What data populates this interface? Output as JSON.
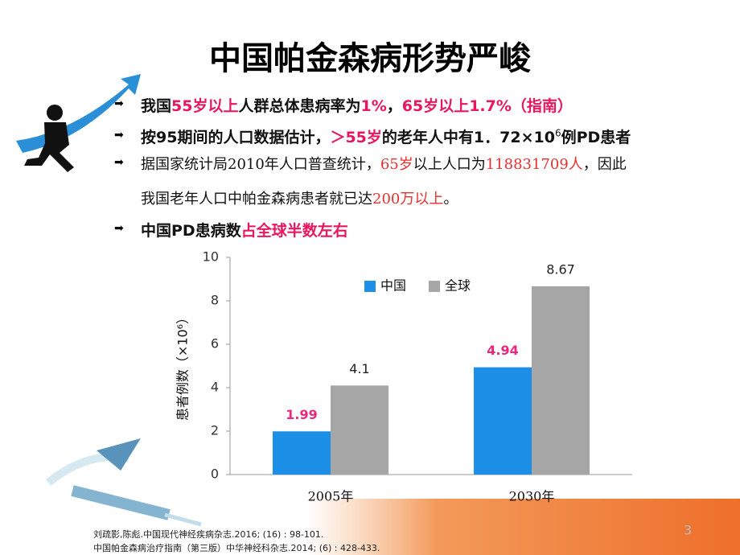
{
  "title": "中国帕金森病形势严峻",
  "bullets": [
    {
      "bold": true,
      "lines": [
        [
          {
            "text": "我国"
          },
          {
            "text": "55岁以上",
            "color": "#e8175d"
          },
          {
            "text": "人群总体患病率为"
          },
          {
            "text": "1%",
            "color": "#e8175d"
          },
          {
            "text": "，"
          },
          {
            "text": "65岁以上1.7%（指南）",
            "color": "#e8175d"
          }
        ]
      ]
    },
    {
      "bold": true,
      "lines": [
        [
          {
            "text": "按95期间的人口数据估计，"
          },
          {
            "text": "＞55岁",
            "color": "#e8175d"
          },
          {
            "text": "的老年人中有1．72×10"
          },
          {
            "text": "6",
            "superscript": true
          },
          {
            "text": "例PD患者"
          }
        ]
      ]
    },
    {
      "bold": false,
      "lines": [
        [
          {
            "text": "据国家统计局2010年人口普查统计，"
          },
          {
            "text": "65岁",
            "color": "#e53030"
          },
          {
            "text": "以上人口为"
          },
          {
            "text": "118831709人",
            "color": "#e53030"
          },
          {
            "text": "，因此"
          }
        ],
        [
          {
            "text": "我国老年人口中帕金森病患者就已达"
          },
          {
            "text": "200万以上",
            "color": "#e53030"
          },
          {
            "text": "。"
          }
        ]
      ]
    },
    {
      "bold": true,
      "lines": [
        [
          {
            "text": "中国PD患病数"
          },
          {
            "text": "占全球半数左右",
            "color": "#e8175d"
          }
        ]
      ]
    }
  ],
  "chart_data": {
    "type": "bar",
    "y_label": "患者例数（×10⁶）",
    "categories": [
      "2005年",
      "2030年"
    ],
    "series": [
      {
        "name": "中国",
        "color": "#1e8fe6",
        "label_color": "#e8277d",
        "values": [
          1.99,
          4.94
        ]
      },
      {
        "name": "全球",
        "color": "#a6a6a6",
        "label_color": "#222222",
        "values": [
          4.1,
          8.67
        ]
      }
    ],
    "ylim": [
      0,
      10
    ],
    "yticks": [
      0,
      2,
      4,
      6,
      8,
      10
    ],
    "grid": false,
    "legend": "top"
  },
  "references": [
    "刘疏影,陈彪.中国现代神经疾病杂志.2016; (16) : 98-101.",
    "中国帕金森病治疗指南（第三版）中华神经科杂志.2014; (6) : 428-433."
  ],
  "page_number": "3"
}
